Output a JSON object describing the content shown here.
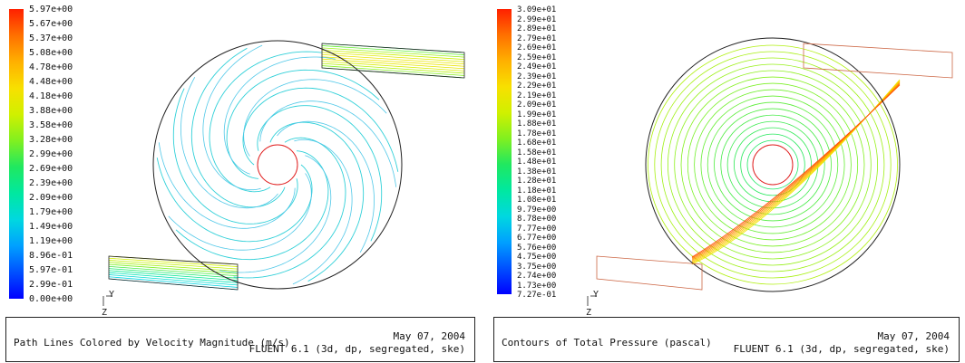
{
  "left": {
    "colorbar_labels": [
      "5.97e+00",
      "5.67e+00",
      "5.37e+00",
      "5.08e+00",
      "4.78e+00",
      "4.48e+00",
      "4.18e+00",
      "3.88e+00",
      "3.58e+00",
      "3.28e+00",
      "2.99e+00",
      "2.69e+00",
      "2.39e+00",
      "2.09e+00",
      "1.79e+00",
      "1.49e+00",
      "1.19e+00",
      "8.96e-01",
      "5.97e-01",
      "2.99e-01",
      "0.00e+00"
    ],
    "footer_title": "Path Lines Colored by Velocity Magnitude (m/s)",
    "footer_date": "May 07, 2004",
    "footer_software": "FLUENT 6.1 (3d, dp, segregated, ske)",
    "axis_y": "Y",
    "axis_z": "Z"
  },
  "right": {
    "colorbar_labels": [
      "3.09e+01",
      "2.99e+01",
      "2.89e+01",
      "2.79e+01",
      "2.69e+01",
      "2.59e+01",
      "2.49e+01",
      "2.39e+01",
      "2.29e+01",
      "2.19e+01",
      "2.09e+01",
      "1.99e+01",
      "1.88e+01",
      "1.78e+01",
      "1.68e+01",
      "1.58e+01",
      "1.48e+01",
      "1.38e+01",
      "1.28e+01",
      "1.18e+01",
      "1.08e+01",
      "9.79e+00",
      "8.78e+00",
      "7.77e+00",
      "6.77e+00",
      "5.76e+00",
      "4.75e+00",
      "3.75e+00",
      "2.74e+00",
      "1.73e+00",
      "7.27e-01"
    ],
    "footer_title": "Contours of Total Pressure (pascal)",
    "footer_date": "May 07, 2004",
    "footer_software": "FLUENT 6.1 (3d, dp, segregated, ske)",
    "axis_y": "Y",
    "axis_z": "Z"
  },
  "colors": {
    "colormap": [
      "#0000ff",
      "#0050ff",
      "#00a0ff",
      "#00d8e0",
      "#00e8a0",
      "#20e860",
      "#80f020",
      "#d0f000",
      "#f8e000",
      "#ffb000",
      "#ff7000",
      "#ff2000"
    ],
    "vortex_line": "#30d0d8",
    "pressure_line": "#70e070",
    "hub_line": "#e02020",
    "outline": "#222222"
  }
}
